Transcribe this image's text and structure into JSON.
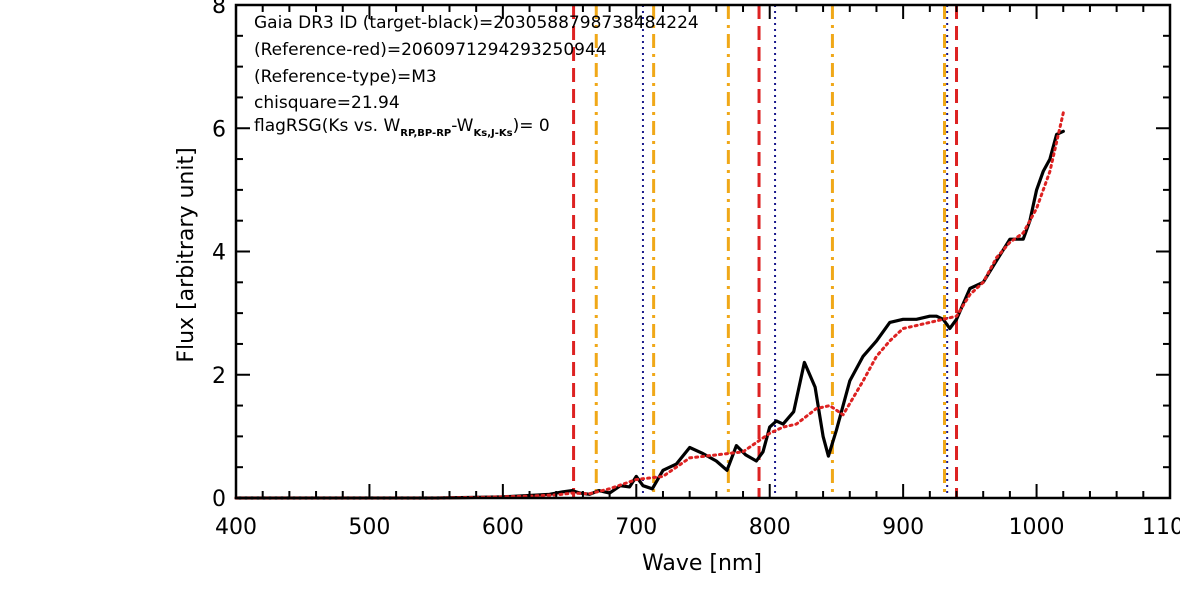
{
  "chart_data": {
    "type": "line",
    "xlabel": "Wave [nm]",
    "ylabel": "Flux [arbitrary unit]",
    "xlim": [
      400,
      1100
    ],
    "ylim": [
      0,
      8
    ],
    "xticks": [
      "400",
      "500",
      "600",
      "700",
      "800",
      "900",
      "1000",
      "1100"
    ],
    "yticks": [
      "0",
      "2",
      "4",
      "6",
      "8"
    ],
    "annotations": {
      "line1": "Gaia DR3 ID (target-black)=2030588798738484224",
      "line2": "(Reference-red)=2060971294293250944",
      "line3": "(Reference-type)=M3",
      "line4": "chisquare=21.94",
      "line5_pre": "flagRSG(Ks vs. W",
      "line5_sub1": "RP,BP-RP",
      "line5_mid": "-W",
      "line5_sub2": "Ks,J-Ks",
      "line5_post": ")=  0"
    },
    "colors": {
      "target": "#000000",
      "reference": "#dd2222",
      "red_dashed": "#dd2222",
      "orange_dashdot": "#f0a818",
      "blue_dotted": "#1a1a8c"
    },
    "vlines": {
      "red_dashed": [
        653,
        792,
        940
      ],
      "orange_dashdot": [
        670,
        713,
        769,
        847,
        931
      ],
      "blue_dotted": [
        705,
        804,
        933
      ]
    },
    "series": [
      {
        "style": "solid-black",
        "x": [
          400,
          450,
          500,
          550,
          580,
          600,
          620,
          635,
          645,
          652,
          658,
          665,
          672,
          680,
          688,
          695,
          700,
          705,
          712,
          720,
          730,
          740,
          750,
          760,
          768,
          775,
          782,
          790,
          795,
          800,
          805,
          810,
          818,
          826,
          834,
          840,
          844,
          850,
          860,
          870,
          880,
          890,
          900,
          910,
          920,
          925,
          930,
          935,
          940,
          950,
          960,
          970,
          980,
          990,
          995,
          1000,
          1005,
          1010,
          1015,
          1020
        ],
        "y": [
          0.0,
          0.0,
          0.0,
          0.0,
          0.01,
          0.02,
          0.04,
          0.06,
          0.1,
          0.12,
          0.08,
          0.06,
          0.12,
          0.08,
          0.2,
          0.18,
          0.35,
          0.2,
          0.15,
          0.45,
          0.55,
          0.82,
          0.72,
          0.6,
          0.45,
          0.85,
          0.7,
          0.6,
          0.75,
          1.15,
          1.25,
          1.2,
          1.4,
          2.2,
          1.8,
          1.0,
          0.68,
          1.1,
          1.9,
          2.3,
          2.55,
          2.85,
          2.9,
          2.9,
          2.95,
          2.95,
          2.9,
          2.75,
          2.9,
          3.4,
          3.5,
          3.85,
          4.2,
          4.2,
          4.5,
          5.0,
          5.3,
          5.5,
          5.9,
          5.95
        ]
      },
      {
        "style": "dotted-red",
        "x": [
          400,
          450,
          500,
          550,
          580,
          600,
          620,
          640,
          652,
          665,
          680,
          700,
          720,
          740,
          760,
          780,
          800,
          810,
          820,
          835,
          845,
          855,
          870,
          880,
          890,
          900,
          910,
          920,
          930,
          940,
          950,
          960,
          970,
          980,
          990,
          1000,
          1010,
          1020
        ],
        "y": [
          0.0,
          0.0,
          0.0,
          0.0,
          0.01,
          0.02,
          0.03,
          0.05,
          0.08,
          0.07,
          0.15,
          0.3,
          0.35,
          0.65,
          0.7,
          0.75,
          1.05,
          1.15,
          1.2,
          1.45,
          1.5,
          1.35,
          1.9,
          2.3,
          2.55,
          2.75,
          2.8,
          2.85,
          2.9,
          2.95,
          3.3,
          3.5,
          3.9,
          4.15,
          4.3,
          4.7,
          5.3,
          6.25
        ]
      }
    ]
  }
}
